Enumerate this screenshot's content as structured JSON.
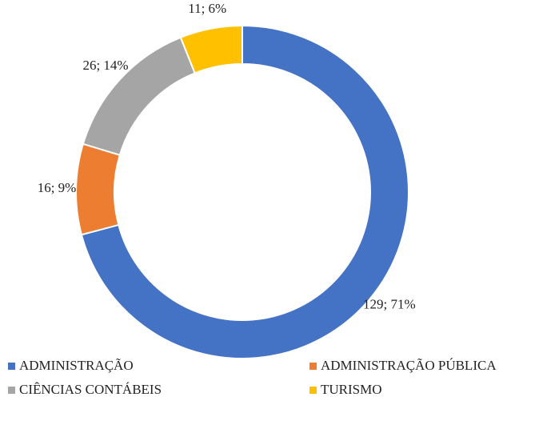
{
  "chart_data": {
    "type": "donut",
    "categories": [
      "ADMINISTRAÇÃO",
      "ADMINISTRAÇÃO PÚBLICA",
      "CIÊNCIAS CONTÁBEIS",
      "TURISMO"
    ],
    "values": [
      129,
      16,
      26,
      11
    ],
    "value_labels": [
      "129; 71%",
      "16; 9%",
      "26; 14%",
      "11; 6%"
    ],
    "colors": [
      "#4472c4",
      "#ed7d31",
      "#a5a5a5",
      "#ffc000"
    ],
    "legend": "bottom"
  }
}
